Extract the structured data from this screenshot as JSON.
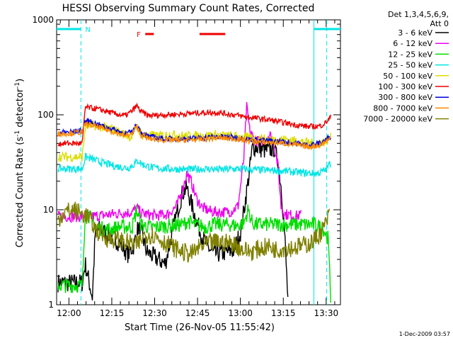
{
  "chart_data": {
    "type": "line",
    "title": "HESSI Observing Summary Count Rates, Corrected",
    "xlabel": "Start Time (26-Nov-05 11:55:42)",
    "ylabel_main": "Corrected Count Rate (s",
    "ylabel_sup1": "-1",
    "ylabel_mid": " detector",
    "ylabel_sup2": "-1",
    "ylabel_end": ")",
    "y_scale": "log",
    "ylim": [
      1,
      1000
    ],
    "xlim": [
      "11:55:42",
      "13:35:00"
    ],
    "x_ticks": [
      "12:00",
      "12:15",
      "12:30",
      "12:45",
      "13:00",
      "13:15",
      "13:30"
    ],
    "y_ticks": [
      "1",
      "10",
      "100",
      "1000"
    ],
    "x_tick_minutes": [
      4.3,
      19.3,
      34.3,
      49.3,
      64.3,
      79.3,
      94.3
    ],
    "y_tick_values": [
      1,
      10,
      100,
      1000
    ],
    "x_range_minutes": [
      0,
      99.3
    ],
    "legend_header": [
      "Det 1,3,4,5,6,9,",
      "Att 0"
    ],
    "legend_placement": "right",
    "series": [
      {
        "name": "3 - 6 keV",
        "color": "#000000",
        "x": [
          0.5,
          9,
          10,
          12.5,
          13.5,
          15,
          19,
          22,
          25,
          27,
          28.5,
          30,
          31.5,
          34,
          38,
          40,
          42,
          44,
          45.5,
          47,
          49,
          51,
          52.5,
          55,
          58,
          62,
          64.5,
          67,
          68.5,
          70,
          72,
          74,
          76,
          77.5,
          78.5,
          79.5,
          81
        ],
        "y": [
          1.7,
          1.7,
          2.7,
          1.2,
          5.5,
          6.3,
          5.2,
          4.5,
          3.4,
          4.2,
          6.5,
          5.3,
          3.6,
          3.2,
          2.7,
          5,
          9,
          15,
          17,
          12,
          7.5,
          5.2,
          4.2,
          3.4,
          3.5,
          3.7,
          6,
          20,
          45,
          46,
          43,
          42,
          45,
          32,
          18,
          8,
          1
        ]
      },
      {
        "name": "6 - 12 keV",
        "color": "#ee00ee",
        "x": [
          0.5,
          9,
          10,
          12,
          14,
          17,
          22,
          26.5,
          28,
          29.5,
          32,
          35,
          39,
          42,
          44,
          45.5,
          47,
          49,
          51,
          54,
          57,
          61,
          63.5,
          65.5,
          66.5,
          67.5,
          69,
          71,
          73,
          74.5,
          76,
          77.5,
          78.5,
          80,
          84,
          85.5
        ],
        "y": [
          8.5,
          8.5,
          8.8,
          8.5,
          8.6,
          8.8,
          9.2,
          9.4,
          10.5,
          9.2,
          8.9,
          8.7,
          9,
          11,
          16,
          24,
          20,
          13,
          10.5,
          9.6,
          9.4,
          9.6,
          11,
          35,
          120,
          70,
          55,
          52,
          56,
          62,
          52,
          28,
          11,
          9,
          8.6,
          8.8
        ]
      },
      {
        "name": "12 - 25 keV",
        "color": "#00dd00",
        "x": [
          0.5,
          4,
          9,
          10,
          12,
          14,
          18,
          22,
          26.5,
          28,
          29.5,
          33,
          40,
          44,
          46,
          48,
          52,
          55,
          60,
          63,
          65.5,
          67,
          68.5,
          70,
          75,
          80,
          86,
          90,
          93,
          95,
          96
        ],
        "y": [
          1.6,
          1.6,
          1.6,
          10,
          8,
          6.5,
          6.2,
          6.6,
          6.6,
          10,
          7,
          6.5,
          6.8,
          7,
          7.6,
          7,
          6.6,
          7,
          7,
          6.8,
          7.2,
          10,
          7.2,
          7,
          7,
          7,
          7,
          7,
          6.5,
          5,
          1
        ]
      },
      {
        "name": "25 - 50 keV",
        "color": "#00e5e5",
        "x": [
          0.5,
          5,
          9,
          10,
          11.5,
          15,
          20,
          25,
          27,
          28.5,
          30,
          34,
          40,
          46,
          52,
          58,
          63,
          68,
          74,
          80,
          86,
          91,
          94,
          96
        ],
        "y": [
          27,
          27,
          27,
          36,
          35,
          32,
          29,
          27.5,
          30,
          33,
          30,
          27.5,
          27,
          26.5,
          27,
          26.5,
          27,
          26.5,
          26,
          25.5,
          24.5,
          24,
          26,
          32
        ]
      },
      {
        "name": "50 - 100 keV",
        "color": "#dddd00",
        "x": [
          0.5,
          5,
          9,
          10,
          12,
          20,
          26,
          28,
          30,
          35,
          40,
          45,
          50,
          55,
          60,
          66,
          70,
          75,
          80,
          86,
          90,
          94,
          96
        ],
        "y": [
          36,
          36,
          36,
          74,
          78,
          70,
          58,
          74,
          62,
          60,
          62,
          60,
          60,
          61,
          60,
          58,
          56,
          55,
          55,
          52,
          50,
          52,
          58
        ]
      },
      {
        "name": "100 - 300 keV",
        "color": "#ee0000",
        "x": [
          0.5,
          5,
          9,
          10,
          12,
          16,
          20,
          24,
          26.5,
          28,
          29.5,
          32,
          38,
          44,
          50,
          56,
          62,
          66,
          70,
          75,
          80,
          84,
          88,
          92,
          94,
          96
        ],
        "y": [
          50,
          50,
          50,
          120,
          118,
          112,
          103,
          98,
          110,
          125,
          108,
          98,
          100,
          102,
          105,
          106,
          100,
          95,
          92,
          88,
          82,
          78,
          75,
          76,
          82,
          95
        ]
      },
      {
        "name": "300 - 800 keV",
        "color": "#0000dd",
        "x": [
          0.5,
          5,
          9,
          10,
          12,
          16,
          20,
          24,
          26.5,
          28,
          29.5,
          32,
          38,
          44,
          50,
          56,
          62,
          66,
          70,
          75,
          80,
          84,
          88,
          92,
          94,
          96
        ],
        "y": [
          65,
          66,
          68,
          86,
          84,
          76,
          70,
          63,
          66,
          80,
          66,
          59,
          56,
          56,
          57,
          59,
          58,
          56,
          54,
          53,
          52,
          50,
          48,
          50,
          54,
          60
        ]
      },
      {
        "name": "800 - 7000 keV",
        "color": "#ff8800",
        "x": [
          0.5,
          5,
          9,
          10,
          12,
          16,
          20,
          24,
          26.5,
          28,
          29.5,
          32,
          38,
          44,
          50,
          56,
          62,
          66,
          70,
          75,
          80,
          84,
          88,
          92,
          94,
          96
        ],
        "y": [
          63,
          64,
          66,
          80,
          78,
          72,
          66,
          60,
          63,
          76,
          62,
          56,
          54,
          54,
          55,
          57,
          56,
          54,
          52,
          51,
          50,
          48,
          46,
          48,
          52,
          57
        ]
      },
      {
        "name": "7000 - 20000 keV",
        "color": "#808000",
        "x": [
          0.5,
          3,
          6,
          9,
          11,
          14,
          18,
          22,
          25,
          28,
          31,
          34,
          38,
          41,
          44,
          47,
          50,
          53,
          56,
          59,
          62,
          65,
          68,
          71,
          74,
          77,
          80,
          83,
          86,
          89,
          92,
          94,
          95.5
        ],
        "y": [
          8,
          9.5,
          10,
          9,
          8.5,
          6,
          5,
          4.8,
          4.5,
          4.2,
          5.5,
          5.4,
          4.5,
          4,
          3.6,
          3.4,
          4,
          4.4,
          4.6,
          4.5,
          4.4,
          3.8,
          3.6,
          3.9,
          4.1,
          3.8,
          4,
          4,
          4.2,
          4.5,
          5.5,
          7,
          9
        ]
      }
    ],
    "annotations": {
      "night_label": "N",
      "flare_label": "F",
      "night_color": "#00e5e5",
      "flare_color": "#ee0000",
      "night_intervals_min": [
        [
          0,
          8.5
        ],
        [
          90,
          99.3
        ]
      ],
      "saa_boundaries_min": [
        8.5,
        90,
        94.5
      ],
      "flare_intervals_min": [
        [
          31,
          34
        ],
        [
          50,
          59
        ]
      ]
    }
  },
  "footer": {
    "timestamp": "1-Dec-2009 03:57"
  }
}
